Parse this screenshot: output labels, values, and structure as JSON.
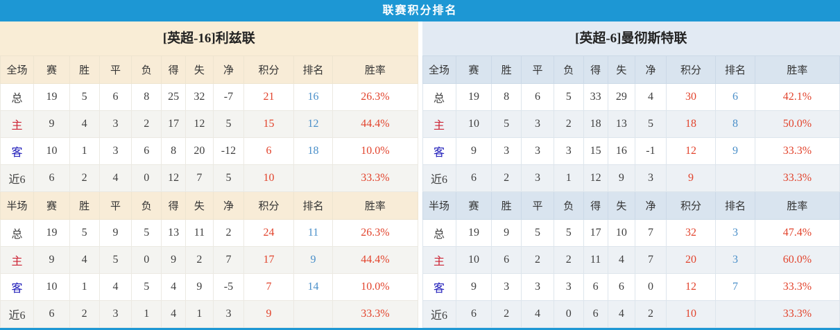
{
  "title": "联赛积分排名",
  "colors": {
    "title_bar_blue": "#1d97d4",
    "cream_bg": "#f9edd6",
    "lightblue_bg": "#e2eaf3",
    "points_red": "#e2432c",
    "rank_blue": "#4a8fc9",
    "home_red": "#cc2233",
    "away_blue": "#1a17b8"
  },
  "columns": {
    "full": [
      "全场",
      "赛",
      "胜",
      "平",
      "负",
      "得",
      "失",
      "净",
      "积分",
      "排名",
      "胜率"
    ],
    "half": [
      "半场",
      "赛",
      "胜",
      "平",
      "负",
      "得",
      "失",
      "净",
      "积分",
      "排名",
      "胜率"
    ]
  },
  "teams": [
    {
      "name": "[英超-16]利兹联",
      "full": [
        {
          "type": "total",
          "label": "总",
          "values": [
            19,
            5,
            6,
            8,
            25,
            32,
            -7
          ],
          "points": 21,
          "rank": "16",
          "rate": "26.3%"
        },
        {
          "type": "home",
          "label": "主",
          "values": [
            9,
            4,
            3,
            2,
            17,
            12,
            5
          ],
          "points": 15,
          "rank": "12",
          "rate": "44.4%"
        },
        {
          "type": "away",
          "label": "客",
          "values": [
            10,
            1,
            3,
            6,
            8,
            20,
            -12
          ],
          "points": 6,
          "rank": "18",
          "rate": "10.0%"
        },
        {
          "type": "recent",
          "label": "近6",
          "values": [
            6,
            2,
            4,
            0,
            12,
            7,
            5
          ],
          "points": 10,
          "rank": "",
          "rate": "33.3%"
        }
      ],
      "half": [
        {
          "type": "total",
          "label": "总",
          "values": [
            19,
            5,
            9,
            5,
            13,
            11,
            2
          ],
          "points": 24,
          "rank": "11",
          "rate": "26.3%"
        },
        {
          "type": "home",
          "label": "主",
          "values": [
            9,
            4,
            5,
            0,
            9,
            2,
            7
          ],
          "points": 17,
          "rank": "9",
          "rate": "44.4%"
        },
        {
          "type": "away",
          "label": "客",
          "values": [
            10,
            1,
            4,
            5,
            4,
            9,
            -5
          ],
          "points": 7,
          "rank": "14",
          "rate": "10.0%"
        },
        {
          "type": "recent",
          "label": "近6",
          "values": [
            6,
            2,
            3,
            1,
            4,
            1,
            3
          ],
          "points": 9,
          "rank": "",
          "rate": "33.3%"
        }
      ]
    },
    {
      "name": "[英超-6]曼彻斯特联",
      "full": [
        {
          "type": "total",
          "label": "总",
          "values": [
            19,
            8,
            6,
            5,
            33,
            29,
            4
          ],
          "points": 30,
          "rank": "6",
          "rate": "42.1%"
        },
        {
          "type": "home",
          "label": "主",
          "values": [
            10,
            5,
            3,
            2,
            18,
            13,
            5
          ],
          "points": 18,
          "rank": "8",
          "rate": "50.0%"
        },
        {
          "type": "away",
          "label": "客",
          "values": [
            9,
            3,
            3,
            3,
            15,
            16,
            -1
          ],
          "points": 12,
          "rank": "9",
          "rate": "33.3%"
        },
        {
          "type": "recent",
          "label": "近6",
          "values": [
            6,
            2,
            3,
            1,
            12,
            9,
            3
          ],
          "points": 9,
          "rank": "",
          "rate": "33.3%"
        }
      ],
      "half": [
        {
          "type": "total",
          "label": "总",
          "values": [
            19,
            9,
            5,
            5,
            17,
            10,
            7
          ],
          "points": 32,
          "rank": "3",
          "rate": "47.4%"
        },
        {
          "type": "home",
          "label": "主",
          "values": [
            10,
            6,
            2,
            2,
            11,
            4,
            7
          ],
          "points": 20,
          "rank": "3",
          "rate": "60.0%"
        },
        {
          "type": "away",
          "label": "客",
          "values": [
            9,
            3,
            3,
            3,
            6,
            6,
            0
          ],
          "points": 12,
          "rank": "7",
          "rate": "33.3%"
        },
        {
          "type": "recent",
          "label": "近6",
          "values": [
            6,
            2,
            4,
            0,
            6,
            4,
            2
          ],
          "points": 10,
          "rank": "",
          "rate": "33.3%"
        }
      ]
    }
  ]
}
